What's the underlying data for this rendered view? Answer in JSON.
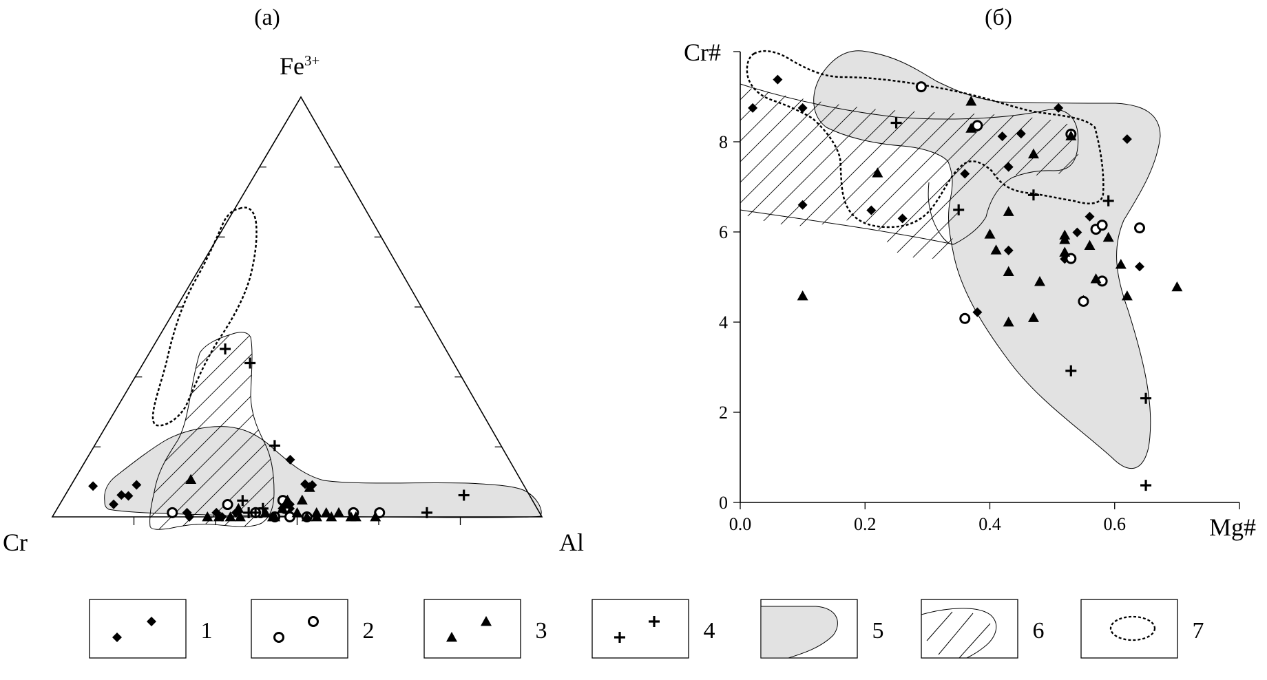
{
  "chart_data": [
    {
      "panel_label": "(a)",
      "type": "ternary",
      "vertices": {
        "top": "Fe3+",
        "left": "Cr",
        "right": "Al"
      },
      "vertex_top_base": "Fe",
      "vertex_top_sup": "3+",
      "series": [
        {
          "legend": "1",
          "marker": "diamond",
          "points": [
            [
              0.08,
              0.96,
              0.05
            ],
            [
              0.18,
              0.59,
              0.55
            ],
            [
              0.08,
              0.83,
              0.14
            ],
            [
              0.05,
              0.8,
              0.11
            ],
            [
              0.05,
              0.82,
              0.13
            ],
            [
              0.03,
              0.86,
              0.11
            ],
            [
              0.1,
              0.57,
              0.65
            ],
            [
              0.1,
              0.57,
              0.61
            ],
            [
              0.01,
              0.72,
              0.27
            ],
            [
              0.01,
              0.66,
              0.33
            ],
            [
              0.02,
              0.51,
              0.48
            ],
            [
              0.03,
              0.5,
              0.47
            ],
            [
              0.0,
              0.72,
              0.28
            ],
            [
              0.01,
              0.62,
              0.37
            ],
            [
              0.02,
              0.52,
              0.46
            ],
            [
              0.0,
              0.66,
              0.35
            ]
          ]
        },
        {
          "legend": "2",
          "marker": "circle",
          "points": [
            [
              0.02,
              0.51,
              0.46
            ],
            [
              0.04,
              0.52,
              0.46
            ],
            [
              0.01,
              0.75,
              0.24
            ],
            [
              0.01,
              0.57,
              0.42
            ],
            [
              0.03,
              0.64,
              0.35
            ],
            [
              0.0,
              0.48,
              0.52
            ],
            [
              0.0,
              0.52,
              0.49
            ],
            [
              0.0,
              0.54,
              0.45
            ],
            [
              0.01,
              0.38,
              0.61
            ],
            [
              0.01,
              0.33,
              0.67
            ],
            [
              0.01,
              0.58,
              0.41
            ]
          ]
        },
        {
          "legend": "3",
          "marker": "triangle",
          "points": [
            [
              0.09,
              0.68,
              0.24
            ],
            [
              0.07,
              0.44,
              0.49
            ],
            [
              0.03,
              0.5,
              0.46
            ],
            [
              0.04,
              0.5,
              0.46
            ],
            [
              0.02,
              0.52,
              0.46
            ],
            [
              0.01,
              0.5,
              0.5
            ],
            [
              0.0,
              0.54,
              0.45
            ],
            [
              0.0,
              0.61,
              0.38
            ],
            [
              0.0,
              0.69,
              0.32
            ],
            [
              0.0,
              0.63,
              0.36
            ],
            [
              0.0,
              0.55,
              0.45
            ],
            [
              0.01,
              0.46,
              0.54
            ],
            [
              0.0,
              0.34,
              0.66
            ],
            [
              0.01,
              0.41,
              0.58
            ],
            [
              0.0,
              0.43,
              0.57
            ],
            [
              0.0,
              0.38,
              0.62
            ],
            [
              0.02,
              0.61,
              0.37
            ],
            [
              0.0,
              0.46,
              0.54
            ],
            [
              0.01,
              0.56,
              0.43
            ],
            [
              0.0,
              0.39,
              0.61
            ],
            [
              0.0,
              0.48,
              0.52
            ],
            [
              0.0,
              0.66,
              0.34
            ],
            [
              0.01,
              0.44,
              0.56
            ],
            [
              0.04,
              0.47,
              0.49
            ]
          ]
        },
        {
          "legend": "4",
          "marker": "plus",
          "points": [
            [
              0.4,
              0.45,
              0.15
            ],
            [
              0.37,
              0.42,
              0.22
            ],
            [
              0.18,
              0.49,
              0.39
            ],
            [
              0.05,
              0.13,
              0.79
            ],
            [
              0.01,
              0.23,
              0.76
            ],
            [
              0.04,
              0.61,
              0.38
            ],
            [
              0.01,
              0.58,
              0.41
            ],
            [
              0.01,
              0.6,
              0.4
            ],
            [
              0.02,
              0.56,
              0.42
            ]
          ]
        }
      ]
    },
    {
      "panel_label": "(б)",
      "type": "scatter",
      "xlabel": "Mg#",
      "ylabel": "Cr#",
      "xlim": [
        0.0,
        0.8
      ],
      "ylim": [
        0,
        10
      ],
      "xticks": [
        "0.0",
        "0.2",
        "0.4",
        "0.6"
      ],
      "yticks": [
        "0",
        "2",
        "4",
        "6",
        "8"
      ],
      "series": [
        {
          "legend": "1",
          "marker": "diamond",
          "points": [
            [
              0.02,
              8.75
            ],
            [
              0.06,
              9.38
            ],
            [
              0.1,
              8.75
            ],
            [
              0.1,
              6.6
            ],
            [
              0.21,
              6.48
            ],
            [
              0.26,
              6.3
            ],
            [
              0.36,
              7.29
            ],
            [
              0.38,
              4.22
            ],
            [
              0.42,
              8.12
            ],
            [
              0.43,
              7.44
            ],
            [
              0.43,
              5.59
            ],
            [
              0.45,
              8.18
            ],
            [
              0.51,
              8.75
            ],
            [
              0.52,
              5.4
            ],
            [
              0.54,
              5.99
            ],
            [
              0.55,
              4.49
            ],
            [
              0.56,
              6.34
            ],
            [
              0.58,
              6.15
            ],
            [
              0.62,
              8.06
            ],
            [
              0.64,
              5.23
            ]
          ]
        },
        {
          "legend": "2",
          "marker": "circle",
          "points": [
            [
              0.29,
              9.22
            ],
            [
              0.38,
              8.36
            ],
            [
              0.53,
              8.17
            ],
            [
              0.36,
              4.08
            ],
            [
              0.53,
              5.41
            ],
            [
              0.55,
              4.46
            ],
            [
              0.57,
              6.06
            ],
            [
              0.58,
              6.15
            ],
            [
              0.58,
              4.91
            ],
            [
              0.64,
              6.09
            ]
          ]
        },
        {
          "legend": "3",
          "marker": "triangle",
          "points": [
            [
              0.1,
              4.58
            ],
            [
              0.22,
              7.31
            ],
            [
              0.37,
              8.9
            ],
            [
              0.37,
              8.3
            ],
            [
              0.4,
              5.95
            ],
            [
              0.41,
              5.6
            ],
            [
              0.43,
              6.45
            ],
            [
              0.43,
              5.12
            ],
            [
              0.43,
              4.0
            ],
            [
              0.47,
              7.73
            ],
            [
              0.47,
              4.1
            ],
            [
              0.48,
              4.9
            ],
            [
              0.52,
              5.55
            ],
            [
              0.52,
              5.83
            ],
            [
              0.52,
              5.93
            ],
            [
              0.53,
              8.13
            ],
            [
              0.56,
              5.7
            ],
            [
              0.57,
              4.96
            ],
            [
              0.59,
              5.88
            ],
            [
              0.61,
              5.28
            ],
            [
              0.62,
              4.58
            ],
            [
              0.7,
              4.78
            ]
          ]
        },
        {
          "legend": "4",
          "marker": "plus",
          "points": [
            [
              0.25,
              8.42
            ],
            [
              0.35,
              6.49
            ],
            [
              0.47,
              6.82
            ],
            [
              0.53,
              2.92
            ],
            [
              0.59,
              6.69
            ],
            [
              0.65,
              2.31
            ],
            [
              0.65,
              0.38
            ]
          ]
        }
      ]
    }
  ],
  "legend": [
    {
      "number": "1",
      "symbol": "diamond"
    },
    {
      "number": "2",
      "symbol": "circle"
    },
    {
      "number": "3",
      "symbol": "triangle"
    },
    {
      "number": "4",
      "symbol": "plus"
    },
    {
      "number": "5",
      "symbol": "gray-field"
    },
    {
      "number": "6",
      "symbol": "hatched-field"
    },
    {
      "number": "7",
      "symbol": "dotted-outline"
    }
  ],
  "colors": {
    "gray_field": "#e2e2e2",
    "ink": "#000000"
  }
}
